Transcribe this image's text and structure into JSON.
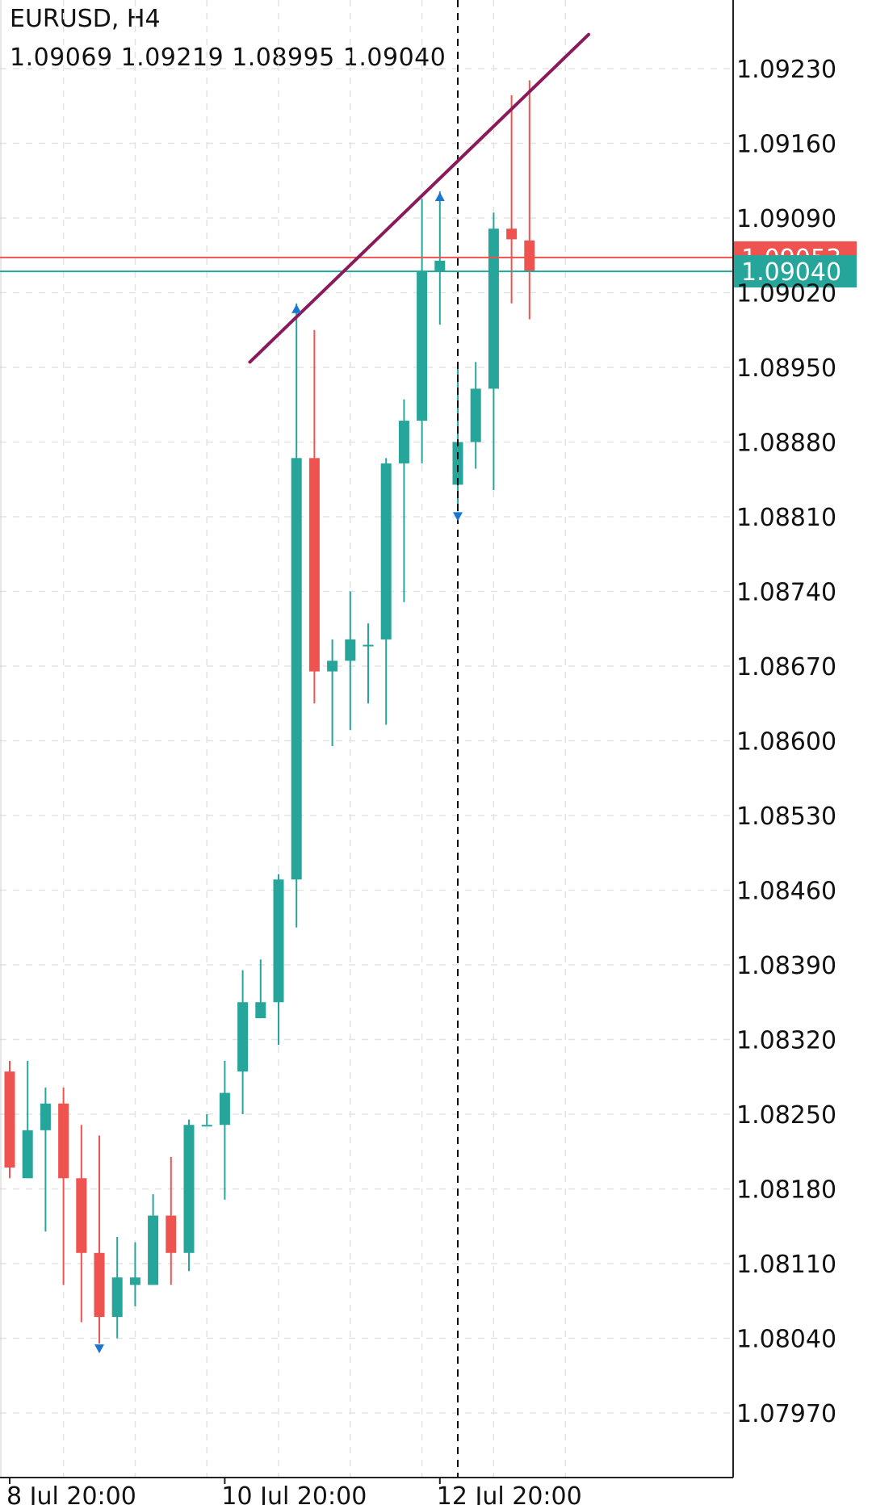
{
  "header": {
    "symbol": "EURUSD, H4",
    "ohlc": "1.09069 1.09219 1.08995 1.09040"
  },
  "colors": {
    "bull": "#26a69a",
    "bear": "#ef5350",
    "trendline": "#8b1a5a",
    "marker": "#1976d2",
    "grid": "#e3e3e3",
    "axis": "#222222"
  },
  "chart_data": {
    "type": "candlestick",
    "symbol": "EURUSD",
    "timeframe": "H4",
    "price_axis": {
      "ticks": [
        "1.09230",
        "1.09160",
        "1.09090",
        "1.09020",
        "1.08950",
        "1.08880",
        "1.08810",
        "1.08740",
        "1.08670",
        "1.08600",
        "1.08530",
        "1.08460",
        "1.08390",
        "1.08320",
        "1.08250",
        "1.08180",
        "1.08110",
        "1.08040",
        "1.07970"
      ],
      "range": [
        1.0791,
        1.0928
      ]
    },
    "time_axis": {
      "labels": [
        {
          "text": "8 Jul 20:00",
          "index": 0
        },
        {
          "text": "10 Jul 20:00",
          "index": 12
        },
        {
          "text": "12 Jul 20:00",
          "index": 24
        }
      ]
    },
    "candles": [
      {
        "o": 1.0829,
        "h": 1.083,
        "l": 1.0819,
        "c": 1.082
      },
      {
        "o": 1.0819,
        "h": 1.083,
        "l": 1.0819,
        "c": 1.08235
      },
      {
        "o": 1.08235,
        "h": 1.08275,
        "l": 1.0814,
        "c": 1.0826
      },
      {
        "o": 1.0826,
        "h": 1.08275,
        "l": 1.0809,
        "c": 1.0819
      },
      {
        "o": 1.0819,
        "h": 1.0824,
        "l": 1.08055,
        "c": 1.0812
      },
      {
        "o": 1.0812,
        "h": 1.0823,
        "l": 1.08035,
        "c": 1.0806
      },
      {
        "o": 1.0806,
        "h": 1.08135,
        "l": 1.0804,
        "c": 1.08097
      },
      {
        "o": 1.0809,
        "h": 1.0813,
        "l": 1.0807,
        "c": 1.08097
      },
      {
        "o": 1.0809,
        "h": 1.08175,
        "l": 1.0809,
        "c": 1.08155
      },
      {
        "o": 1.08155,
        "h": 1.0821,
        "l": 1.0809,
        "c": 1.0812
      },
      {
        "o": 1.0812,
        "h": 1.08245,
        "l": 1.08103,
        "c": 1.0824
      },
      {
        "o": 1.0824,
        "h": 1.0825,
        "l": 1.0824,
        "c": 1.0824
      },
      {
        "o": 1.0824,
        "h": 1.083,
        "l": 1.0817,
        "c": 1.0827
      },
      {
        "o": 1.0829,
        "h": 1.08385,
        "l": 1.0825,
        "c": 1.08355
      },
      {
        "o": 1.0834,
        "h": 1.08395,
        "l": 1.0834,
        "c": 1.08355
      },
      {
        "o": 1.08355,
        "h": 1.08475,
        "l": 1.08315,
        "c": 1.0847
      },
      {
        "o": 1.0847,
        "h": 1.0901,
        "l": 1.08425,
        "c": 1.08865
      },
      {
        "o": 1.08865,
        "h": 1.08985,
        "l": 1.08635,
        "c": 1.08665
      },
      {
        "o": 1.08665,
        "h": 1.08695,
        "l": 1.08595,
        "c": 1.08675
      },
      {
        "o": 1.08675,
        "h": 1.0874,
        "l": 1.0861,
        "c": 1.08695
      },
      {
        "o": 1.0869,
        "h": 1.0871,
        "l": 1.08635,
        "c": 1.0869
      },
      {
        "o": 1.08695,
        "h": 1.08865,
        "l": 1.08615,
        "c": 1.0886
      },
      {
        "o": 1.0886,
        "h": 1.0892,
        "l": 1.0873,
        "c": 1.089
      },
      {
        "o": 1.089,
        "h": 1.09108,
        "l": 1.0886,
        "c": 1.0904
      },
      {
        "o": 1.0904,
        "h": 1.09115,
        "l": 1.0899,
        "c": 1.0905
      },
      {
        "o": 1.0884,
        "h": 1.0895,
        "l": 1.08815,
        "c": 1.0888
      },
      {
        "o": 1.0888,
        "h": 1.08955,
        "l": 1.08855,
        "c": 1.0893
      },
      {
        "o": 1.0893,
        "h": 1.09095,
        "l": 1.08835,
        "c": 1.0908
      },
      {
        "o": 1.0908,
        "h": 1.09205,
        "l": 1.0901,
        "c": 1.0907
      },
      {
        "o": 1.09069,
        "h": 1.09219,
        "l": 1.08995,
        "c": 1.0904
      }
    ],
    "markers": [
      {
        "index": 16,
        "price": 1.0901,
        "dir": "up"
      },
      {
        "index": 24,
        "price": 1.09115,
        "dir": "up"
      },
      {
        "index": 25,
        "price": 1.08815,
        "dir": "down"
      },
      {
        "index": 5,
        "price": 1.08035,
        "dir": "down"
      }
    ],
    "trendline": {
      "from": {
        "index": 13.4,
        "price": 1.08955
      },
      "to": {
        "index": 32.3,
        "price": 1.09262
      }
    },
    "price_lines": [
      {
        "label": "1.09053",
        "price": 1.09053,
        "color": "#ef5350"
      },
      {
        "label": "1.09040",
        "price": 1.0904,
        "color": "#26a69a"
      }
    ],
    "vertical_line_index": 25,
    "grid": true
  }
}
